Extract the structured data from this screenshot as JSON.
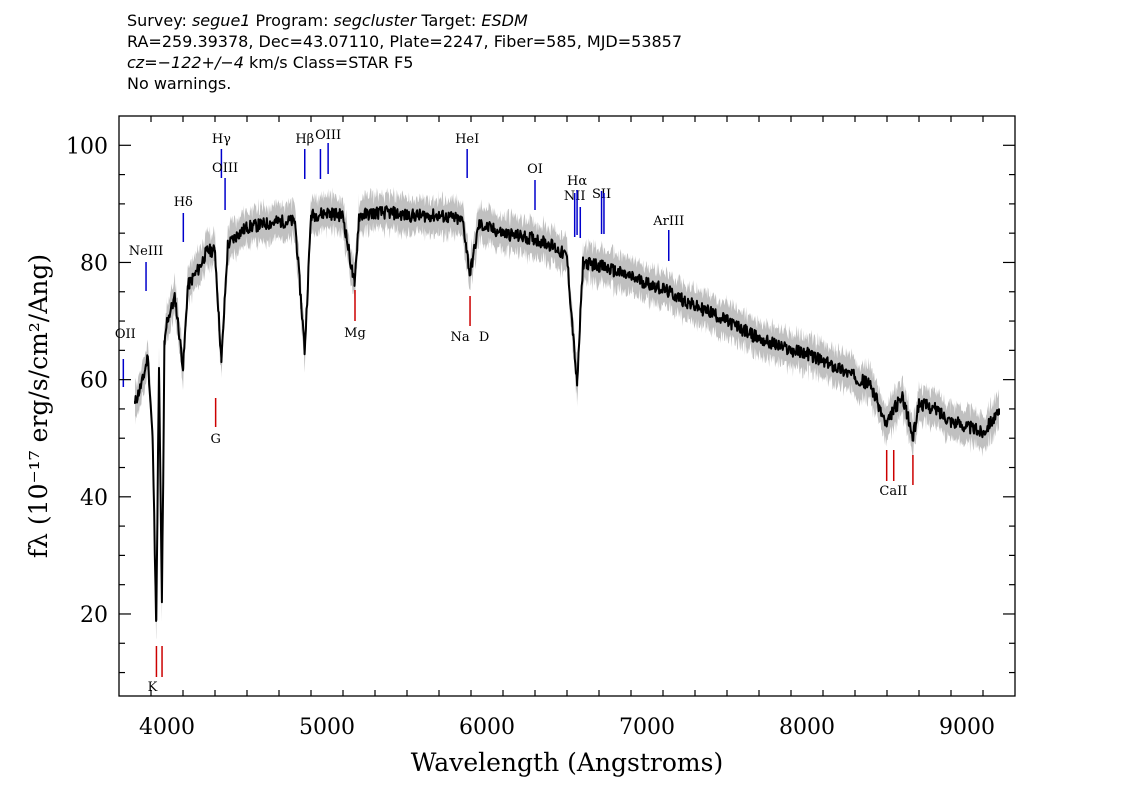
{
  "header": {
    "line1_survey_label": "Survey: ",
    "line1_survey": "segue1",
    "line1_program_label": " Program: ",
    "line1_program": "segcluster",
    "line1_target_label": " Target: ",
    "line1_target": "ESDM",
    "line2": "RA=259.39378, Dec=43.07110, Plate=2247, Fiber=585, MJD=53857",
    "line3_cz": "cz=−122+/−4",
    "line3_rest": " km/s Class=STAR F5",
    "line4": "No warnings."
  },
  "chart_data": {
    "type": "line",
    "xlabel": "Wavelength (Angstroms)",
    "ylabel": "fλ (10⁻¹⁷ erg/s/cm²/Ang)",
    "xlim": [
      3700,
      9300
    ],
    "ylim": [
      6,
      105
    ],
    "x_ticks": [
      4000,
      5000,
      6000,
      7000,
      8000,
      9000
    ],
    "y_ticks": [
      20,
      40,
      60,
      80,
      100
    ],
    "grid": false,
    "colors": {
      "flux": "#000000",
      "error_band": "#c0c0c0",
      "emission": "#0000cc",
      "absorption": "#cc0000"
    },
    "series": [
      {
        "x": [
          3800,
          3850,
          3880,
          3910,
          3933,
          3950,
          3968,
          3985,
          4000,
          4050,
          4101,
          4130,
          4200,
          4250,
          4300,
          4340,
          4380,
          4450,
          4500,
          4600,
          4700,
          4800,
          4861,
          4900,
          5000,
          5100,
          5172,
          5200,
          5300,
          5400,
          5500,
          5600,
          5700,
          5800,
          5850,
          5893,
          5950,
          6000,
          6100,
          6200,
          6300,
          6400,
          6500,
          6563,
          6600,
          6700,
          6800,
          6900,
          7000,
          7100,
          7200,
          7300,
          7400,
          7500,
          7600,
          7700,
          7800,
          7900,
          8000,
          8100,
          8200,
          8300,
          8400,
          8498,
          8542,
          8600,
          8662,
          8700,
          8800,
          8900,
          9000,
          9100,
          9150,
          9200
        ],
        "y": [
          56,
          60,
          64,
          50,
          19,
          62,
          22,
          66,
          70,
          74,
          62,
          76,
          79,
          82,
          82,
          63,
          83,
          85,
          86,
          86.5,
          87,
          87,
          65,
          88,
          88.5,
          88,
          76,
          88,
          88.5,
          88.5,
          88,
          88,
          88,
          87.5,
          87,
          78,
          86.5,
          86,
          85,
          84.5,
          84,
          83,
          81,
          59,
          80,
          79.5,
          78.5,
          77.5,
          76.5,
          75.5,
          74,
          72.5,
          71.5,
          70,
          68.5,
          67,
          66,
          65,
          64.5,
          63,
          62,
          60.5,
          59,
          52,
          55,
          57,
          50,
          56,
          55,
          53,
          52,
          51,
          53,
          54
        ]
      }
    ],
    "lines": [
      {
        "label": "OII",
        "wave": 3727,
        "kind": "emission"
      },
      {
        "label": "NeIII",
        "wave": 3869,
        "kind": "emission"
      },
      {
        "label": "Hδ",
        "wave": 4102,
        "kind": "emission"
      },
      {
        "label": "Hγ",
        "wave": 4340,
        "kind": "emission"
      },
      {
        "label": "OIII",
        "wave": 4363,
        "kind": "emission"
      },
      {
        "label": "Hβ",
        "wave": 4861,
        "kind": "emission"
      },
      {
        "label": "OIII",
        "wave": 4959,
        "kind": "emission"
      },
      {
        "label": "OIII",
        "wave": 5007,
        "kind": "emission"
      },
      {
        "label": "HeI",
        "wave": 5876,
        "kind": "emission"
      },
      {
        "label": "OI",
        "wave": 6300,
        "kind": "emission"
      },
      {
        "label": "NII",
        "wave": 6548,
        "kind": "emission"
      },
      {
        "label": "Hα",
        "wave": 6563,
        "kind": "emission"
      },
      {
        "label": "NII",
        "wave": 6583,
        "kind": "emission"
      },
      {
        "label": "SII",
        "wave": 6716,
        "kind": "emission"
      },
      {
        "label": "SII",
        "wave": 6731,
        "kind": "emission"
      },
      {
        "label": "ArIII",
        "wave": 7136,
        "kind": "emission"
      },
      {
        "label": "K",
        "wave": 3934,
        "kind": "absorption"
      },
      {
        "label": "H",
        "wave": 3969,
        "kind": "absorption"
      },
      {
        "label": "G",
        "wave": 4304,
        "kind": "absorption"
      },
      {
        "label": "Mg",
        "wave": 5175,
        "kind": "absorption"
      },
      {
        "label": "Na",
        "wave": 5894,
        "kind": "absorption"
      },
      {
        "label": "D",
        "wave": 5894,
        "kind": "absorption"
      },
      {
        "label": "CaII",
        "wave": 8498,
        "kind": "absorption"
      },
      {
        "label": "CaII",
        "wave": 8542,
        "kind": "absorption"
      },
      {
        "label": "CaII",
        "wave": 8662,
        "kind": "absorption"
      }
    ]
  }
}
